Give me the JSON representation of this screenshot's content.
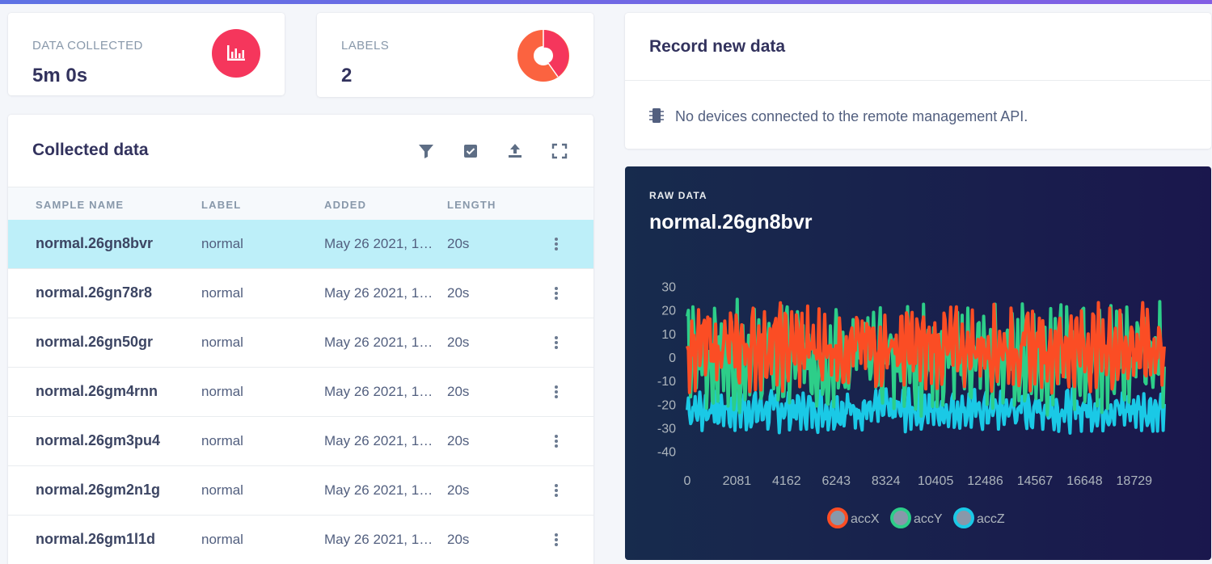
{
  "stats": {
    "data_collected": {
      "title": "DATA COLLECTED",
      "value": "5m 0s",
      "icon": "bar-chart-icon",
      "color": "#f5365c"
    },
    "labels": {
      "title": "LABELS",
      "value": "2",
      "icon": "pie-chart-icon",
      "colors": [
        "#fb6340",
        "#f5365c"
      ]
    }
  },
  "collected": {
    "title": "Collected data",
    "tools": [
      "filter-icon",
      "select-icon",
      "upload-icon",
      "expand-icon"
    ],
    "columns": [
      "SAMPLE NAME",
      "LABEL",
      "ADDED",
      "LENGTH"
    ],
    "rows": [
      {
        "name": "normal.26gn8bvr",
        "label": "normal",
        "added": "May 26 2021, 1…",
        "length": "20s",
        "selected": true
      },
      {
        "name": "normal.26gn78r8",
        "label": "normal",
        "added": "May 26 2021, 1…",
        "length": "20s",
        "selected": false
      },
      {
        "name": "normal.26gn50gr",
        "label": "normal",
        "added": "May 26 2021, 1…",
        "length": "20s",
        "selected": false
      },
      {
        "name": "normal.26gm4rnn",
        "label": "normal",
        "added": "May 26 2021, 1…",
        "length": "20s",
        "selected": false
      },
      {
        "name": "normal.26gm3pu4",
        "label": "normal",
        "added": "May 26 2021, 1…",
        "length": "20s",
        "selected": false
      },
      {
        "name": "normal.26gm2n1g",
        "label": "normal",
        "added": "May 26 2021, 1…",
        "length": "20s",
        "selected": false
      },
      {
        "name": "normal.26gm1l1d",
        "label": "normal",
        "added": "May 26 2021, 1…",
        "length": "20s",
        "selected": false
      }
    ]
  },
  "record": {
    "title": "Record new data",
    "message": "No devices connected to the remote management API."
  },
  "raw": {
    "label": "RAW DATA",
    "title": "normal.26gn8bvr"
  },
  "chart_data": {
    "type": "line",
    "x_ticks": [
      0,
      2081,
      4162,
      6243,
      8324,
      10405,
      12486,
      14567,
      16648,
      18729
    ],
    "xlim": [
      0,
      19990
    ],
    "y_ticks": [
      30,
      20,
      10,
      0,
      -10,
      -20,
      -30,
      -40
    ],
    "ylim": [
      -40,
      30
    ],
    "grid": false,
    "legend_position": "bottom",
    "series": [
      {
        "name": "accZ",
        "color": "#1ac9e6",
        "approx_range": [
          -32,
          -12
        ]
      },
      {
        "name": "accY",
        "color": "#2dce89",
        "approx_range": [
          -25,
          25
        ]
      },
      {
        "name": "accX",
        "color": "#fb4d24",
        "approx_range": [
          -15,
          24
        ]
      }
    ],
    "legend": [
      {
        "name": "accX",
        "color": "#fb4d24"
      },
      {
        "name": "accY",
        "color": "#2dce89"
      },
      {
        "name": "accZ",
        "color": "#1ac9e6"
      }
    ]
  }
}
